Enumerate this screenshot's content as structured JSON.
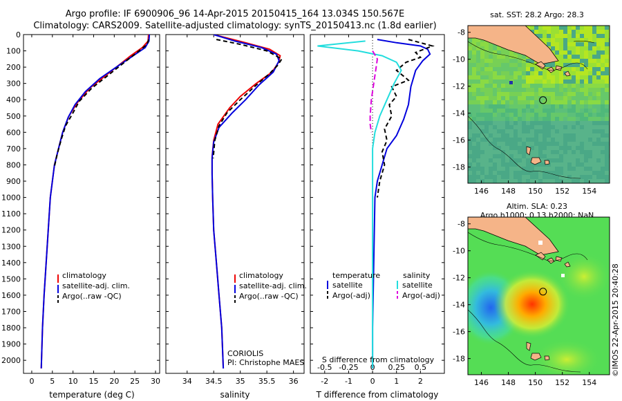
{
  "header": {
    "line1": "Argo profile: IF 6900906_96 14-Apr-2015 20150415_164 13.034S 150.567E",
    "line2": "Climatology: CARS2009. Satellite-adjusted climatology: synTS_20150413.nc (1.8d earlier)"
  },
  "footer": {
    "operator": "CORIOLIS",
    "pi": "PI: Christophe MAES",
    "stamp": "©IMOS 22-Apr-2015 20:40:28"
  },
  "colors": {
    "climatology": "#ee0000",
    "satellite": "#0000dd",
    "argo": "#000000",
    "salinity_sat": "#22dddd",
    "salinity_argo": "#dd00dd",
    "land": "#f5b488"
  },
  "chart_data": [
    {
      "type": "line",
      "xlabel": "temperature (deg C)",
      "xlim": [
        -2,
        31
      ],
      "xticks": [
        "0",
        "5",
        "10",
        "15",
        "20",
        "25",
        "30"
      ],
      "ylim": [
        0,
        2080
      ],
      "yticks": [
        "0",
        "100",
        "200",
        "300",
        "400",
        "500",
        "600",
        "700",
        "800",
        "900",
        "1000",
        "1100",
        "1200",
        "1300",
        "1400",
        "1500",
        "1600",
        "1700",
        "1800",
        "1900",
        "2000"
      ],
      "legend": [
        "climatology",
        "satellite-adj. clim.",
        "Argo(..raw -QC)"
      ],
      "series": [
        {
          "name": "climatology",
          "color": "#ee0000",
          "dash": "",
          "x": [
            28.3,
            28.2,
            26.8,
            24,
            21.5,
            18,
            14,
            11,
            9,
            7.5,
            6.5,
            5.5,
            5,
            4.5,
            4,
            3.5,
            3,
            2.6,
            2.3
          ],
          "y": [
            0,
            40,
            80,
            130,
            180,
            250,
            330,
            420,
            500,
            600,
            700,
            800,
            900,
            1000,
            1200,
            1400,
            1600,
            1800,
            2050
          ]
        },
        {
          "name": "satellite-adj. clim.",
          "color": "#0000dd",
          "dash": "",
          "x": [
            28.5,
            28.4,
            27.5,
            24,
            20.5,
            16.5,
            13,
            10.5,
            8.8,
            7.5,
            6.5,
            5.5,
            5,
            4.5,
            4,
            3.5,
            3,
            2.6,
            2.3
          ],
          "y": [
            0,
            40,
            80,
            140,
            200,
            270,
            350,
            430,
            510,
            600,
            700,
            800,
            900,
            1000,
            1200,
            1400,
            1600,
            1800,
            2050
          ]
        },
        {
          "name": "Argo(..raw -QC)",
          "color": "#000000",
          "dash": "6,4",
          "x": [
            28.3,
            28,
            26,
            23.5,
            21,
            18,
            14.5,
            11.5,
            9.8,
            8.2,
            7.2,
            6.2,
            5.5
          ],
          "y": [
            30,
            60,
            100,
            150,
            200,
            260,
            330,
            410,
            490,
            560,
            640,
            730,
            810
          ]
        }
      ]
    },
    {
      "type": "line",
      "xlabel": "salinity",
      "xlim": [
        33.6,
        36.2
      ],
      "xticks": [
        "34",
        "34.5",
        "35",
        "35.5",
        "36"
      ],
      "ylim": [
        0,
        2080
      ],
      "legend": [
        "climatology",
        "satellite-adj. clim.",
        "Argo(..raw -QC)"
      ],
      "series": [
        {
          "name": "climatology",
          "color": "#ee0000",
          "dash": "",
          "x": [
            34.5,
            35.1,
            35.55,
            35.75,
            35.72,
            35.6,
            35.3,
            35.0,
            34.8,
            34.58,
            34.5,
            34.47,
            34.47,
            34.48,
            34.5,
            34.55,
            34.6,
            34.65,
            34.68
          ],
          "y": [
            0,
            50,
            90,
            130,
            170,
            230,
            300,
            380,
            450,
            550,
            650,
            750,
            850,
            1000,
            1200,
            1400,
            1600,
            1800,
            2050
          ]
        },
        {
          "name": "satellite-adj. clim.",
          "color": "#0000dd",
          "dash": "",
          "x": [
            34.5,
            34.9,
            35.4,
            35.68,
            35.73,
            35.62,
            35.35,
            35.1,
            34.85,
            34.6,
            34.5,
            34.47,
            34.47,
            34.48,
            34.5,
            34.55,
            34.6,
            34.65,
            34.68
          ],
          "y": [
            0,
            40,
            80,
            120,
            160,
            230,
            310,
            400,
            480,
            570,
            660,
            760,
            860,
            1000,
            1200,
            1400,
            1600,
            1800,
            2050
          ]
        },
        {
          "name": "Argo(..raw -QC)",
          "color": "#000000",
          "dash": "6,4",
          "x": [
            34.55,
            35.0,
            35.5,
            35.78,
            35.7,
            35.55,
            35.3,
            35.0,
            34.75,
            34.6,
            34.52,
            34.49
          ],
          "y": [
            30,
            60,
            100,
            150,
            190,
            240,
            310,
            400,
            480,
            560,
            650,
            760
          ]
        }
      ]
    },
    {
      "type": "line",
      "xlabel": "T difference from climatology",
      "xlabel2": "S difference from climatology",
      "xlim": [
        -2.6,
        3
      ],
      "xticks_T": [
        "-2",
        "-1",
        "0",
        "1",
        "2"
      ],
      "xticks_S": [
        "-0.5",
        "-0.25",
        "0",
        "0.25",
        "0.5"
      ],
      "ylim": [
        0,
        2080
      ],
      "legend_left_title": "temperature",
      "legend_right_title": "salinity",
      "legend": [
        "satellite",
        "Argo(-adj)",
        "satellite",
        "Argo(-adj)"
      ],
      "series": [
        {
          "name": "temperature satellite",
          "color": "#0000dd",
          "dash": "",
          "x": [
            0.2,
            1.0,
            2.0,
            2.3,
            2.4,
            2.1,
            1.8,
            1.6,
            1.5,
            1.3,
            1.0,
            0.6,
            0.4,
            0.2,
            0.1,
            0.05,
            0,
            0
          ],
          "y": [
            30,
            50,
            70,
            90,
            120,
            160,
            220,
            320,
            430,
            520,
            620,
            700,
            800,
            900,
            1000,
            1400,
            1800,
            2050
          ]
        },
        {
          "name": "temperature Argo(-adj)",
          "color": "#000000",
          "dash": "6,4",
          "x": [
            1.5,
            2.5,
            1.8,
            2.0,
            1.4,
            1.0,
            1.5,
            0.8,
            1.0,
            0.7,
            0.8,
            0.5,
            0.6,
            0.4,
            0.5,
            0.3,
            0.2
          ],
          "y": [
            30,
            70,
            110,
            140,
            170,
            220,
            280,
            320,
            380,
            430,
            500,
            580,
            650,
            720,
            800,
            900,
            1000
          ]
        },
        {
          "name": "salinity satellite",
          "color": "#22dddd",
          "dash": "",
          "x": [
            -0.3,
            -2.3,
            -0.6,
            0.4,
            1.0,
            1.2,
            0.9,
            0.6,
            0.3,
            0.1,
            0,
            0
          ],
          "y": [
            40,
            70,
            100,
            130,
            170,
            220,
            300,
            400,
            500,
            600,
            700,
            2050
          ]
        },
        {
          "name": "salinity Argo(-adj)",
          "color": "#dd00dd",
          "dash": "8,4",
          "x": [
            0,
            0.2,
            0.15,
            0.05,
            -0.05,
            -0.1,
            -0.1,
            -0.05
          ],
          "y": [
            100,
            150,
            200,
            300,
            400,
            500,
            550,
            600
          ]
        }
      ]
    },
    {
      "type": "heatmap",
      "title": "sat. SST: 28.2 Argo: 28.3",
      "xticks": [
        "146",
        "148",
        "150",
        "152",
        "154"
      ],
      "yticks": [
        "-8",
        "-10",
        "-12",
        "-14",
        "-16",
        "-18"
      ],
      "xlim": [
        145,
        155.5
      ],
      "ylim": [
        -19.2,
        -7.5
      ],
      "marker": {
        "lon": 150.567,
        "lat": -13.034
      }
    },
    {
      "type": "heatmap",
      "title": "Altim. SLA: 0.23",
      "subtitle": "Argo h1000: 0.13 h2000: NaN",
      "xticks": [
        "146",
        "148",
        "150",
        "152",
        "154"
      ],
      "yticks": [
        "-8",
        "-10",
        "-12",
        "-14",
        "-16",
        "-18"
      ],
      "xlim": [
        145,
        155.5
      ],
      "ylim": [
        -19.2,
        -7.5
      ],
      "marker": {
        "lon": 150.567,
        "lat": -13.034
      }
    }
  ]
}
